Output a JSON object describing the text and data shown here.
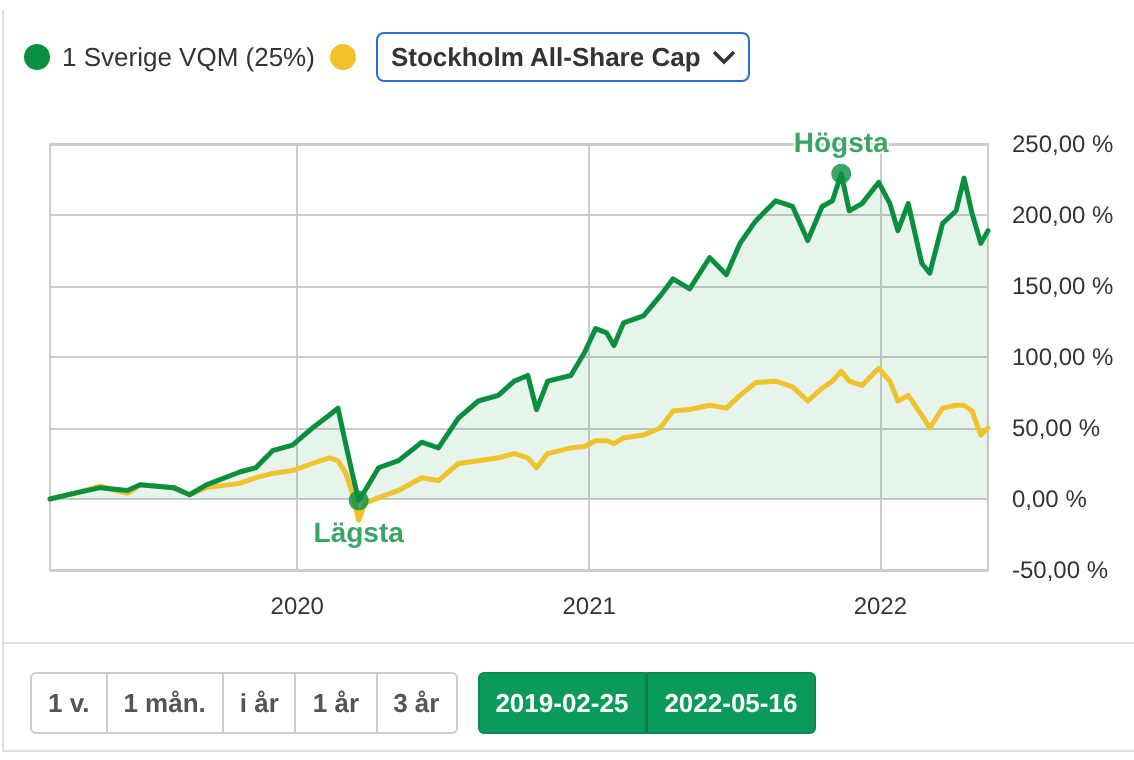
{
  "chart_data": {
    "type": "line",
    "x": [
      "2019-02-25",
      "2019-03-27",
      "2019-04-29",
      "2019-06-02",
      "2019-06-18",
      "2019-07-30",
      "2019-08-19",
      "2019-09-09",
      "2019-10-21",
      "2019-11-10",
      "2019-12-01",
      "2019-12-26",
      "2020-01-20",
      "2020-02-10",
      "2020-02-21",
      "2020-03-02",
      "2020-03-10",
      "2020-03-18",
      "2020-03-26",
      "2020-04-12",
      "2020-05-07",
      "2020-06-05",
      "2020-06-26",
      "2020-07-21",
      "2020-08-15",
      "2020-09-09",
      "2020-09-29",
      "2020-10-16",
      "2020-10-27",
      "2020-11-10",
      "2020-12-09",
      "2020-12-26",
      "2021-01-09",
      "2021-01-23",
      "2021-02-01",
      "2021-02-13",
      "2021-03-10",
      "2021-03-31",
      "2021-04-16",
      "2021-05-07",
      "2021-06-01",
      "2021-06-22",
      "2021-07-09",
      "2021-07-29",
      "2021-08-23",
      "2021-09-13",
      "2021-10-02",
      "2021-10-20",
      "2021-11-02",
      "2021-11-13",
      "2021-11-23",
      "2021-12-09",
      "2021-12-30",
      "2022-01-13",
      "2022-01-23",
      "2022-02-05",
      "2022-02-22",
      "2022-03-04",
      "2022-03-20",
      "2022-04-06",
      "2022-04-16",
      "2022-04-26",
      "2022-05-07",
      "2022-05-16"
    ],
    "series": [
      {
        "name": "1 Sverige VQM (25%)",
        "type": "area",
        "color": "#0a8f3e",
        "values": [
          0,
          4,
          8,
          6,
          10,
          8,
          3,
          10,
          19,
          22,
          34,
          38,
          50,
          59,
          64,
          38,
          18,
          -1,
          6,
          22,
          27,
          40,
          36,
          57,
          69,
          73,
          83,
          87,
          63,
          83,
          87,
          103,
          120,
          117,
          108,
          124,
          129,
          143,
          155,
          148,
          170,
          158,
          180,
          196,
          210,
          206,
          182,
          206,
          210,
          229,
          203,
          208,
          223,
          208,
          189,
          208,
          166,
          159,
          194,
          203,
          226,
          201,
          180,
          189
        ]
      },
      {
        "name": "Stockholm All-Share Cap",
        "color": "#f0c22e",
        "values": [
          0,
          4,
          9,
          4,
          10,
          8,
          3,
          8,
          11,
          15,
          18,
          20,
          25,
          29,
          27,
          18,
          4,
          -15,
          -3,
          1,
          6,
          15,
          13,
          25,
          27,
          29,
          32,
          29,
          22,
          32,
          36,
          37,
          41,
          41,
          39,
          43,
          45,
          50,
          62,
          63,
          66,
          64,
          73,
          82,
          83,
          79,
          69,
          78,
          83,
          90,
          83,
          80,
          92,
          83,
          69,
          73,
          59,
          50,
          64,
          66,
          66,
          62,
          45,
          50
        ]
      }
    ],
    "xlim": [
      "2019-02-25",
      "2022-05-16"
    ],
    "xticks": [
      {
        "value": "2020-01-01",
        "label": "2020"
      },
      {
        "value": "2021-01-01",
        "label": "2021"
      },
      {
        "value": "2022-01-01",
        "label": "2022"
      }
    ],
    "ylim": [
      -50,
      250
    ],
    "yticks": [
      {
        "value": -50,
        "label": "-50,00 %"
      },
      {
        "value": 0,
        "label": "0,00 %"
      },
      {
        "value": 50,
        "label": "50,00 %"
      },
      {
        "value": 100,
        "label": "100,00 %"
      },
      {
        "value": 150,
        "label": "150,00 %"
      },
      {
        "value": 200,
        "label": "200,00 %"
      },
      {
        "value": 250,
        "label": "250,00 %"
      }
    ],
    "grid": true,
    "legend": "top left",
    "marker": "none",
    "annotations": [
      {
        "text": "Högsta",
        "x": "2021-11-13",
        "y": 229
      },
      {
        "text": "Lägsta",
        "x": "2020-03-18",
        "y": -1
      },
      "1 v.",
      "1 mån.",
      "i år",
      "1 år",
      "3 år",
      "2019-02-25",
      "2022-05-16"
    ]
  }
}
